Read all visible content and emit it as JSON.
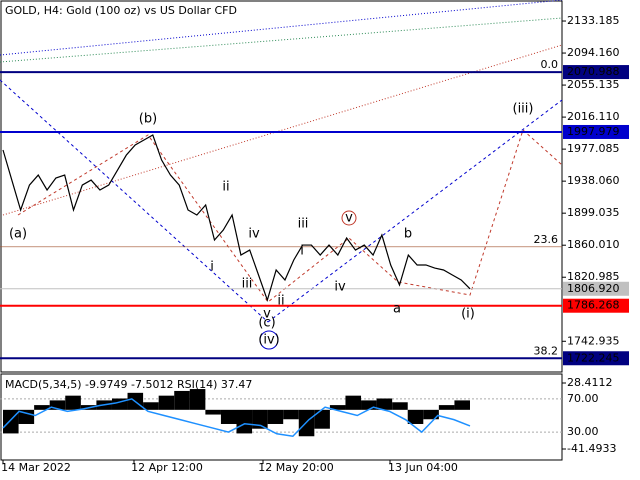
{
  "chart_data": {
    "type": "line",
    "title": "GOLD, H4:  Gold (100 oz) vs US Dollar CFD",
    "values": [
      1976.0,
      1939.4,
      1902.9,
      1933.3,
      1945.5,
      1927.3,
      1941.9,
      1945.5,
      1902.9,
      1933.3,
      1939.4,
      1927.3,
      1933.3,
      1951.6,
      1969.9,
      1982.1,
      1988.2,
      1994.3,
      1963.8,
      1945.5,
      1933.3,
      1902.9,
      1896.8,
      1909.0,
      1866.3,
      1878.5,
      1896.8,
      1848.0,
      1854.1,
      1823.7,
      1793.2,
      1829.8,
      1817.6,
      1842.0,
      1860.2,
      1860.2,
      1848.0,
      1860.2,
      1848.0,
      1868.8,
      1854.1,
      1860.2,
      1848.0,
      1872.4,
      1835.9,
      1811.5,
      1848.0,
      1835.9,
      1835.9,
      1832.2,
      1829.8,
      1823.7,
      1817.6,
      1806.92
    ],
    "color": "#000000",
    "ylim": [
      1705.5,
      2158.8
    ],
    "yticks": [
      2133.185,
      {
        "value": 2094.16,
        "label": "2094.160"
      },
      2055.135,
      {
        "value": 2016.11,
        "label": "2016.110"
      },
      1977.085,
      {
        "value": 1938.06,
        "label": "1938.060"
      },
      1899.035,
      {
        "value": 1860.01,
        "label": "1860.010"
      },
      1820.985,
      1742.935
    ],
    "levels": [
      {
        "value": 2070.988,
        "label": "2070.988",
        "color": "#000080"
      },
      {
        "value": 1997.979,
        "label": "1997.979",
        "color": "#0000cd"
      },
      {
        "value": 1786.268,
        "label": "1786.268",
        "color": "#ff0000"
      },
      {
        "value": 1722.245,
        "label": "1722.245",
        "color": "#000080"
      },
      {
        "value": 1806.92,
        "label": "1806.920",
        "color": "#c0c0c0"
      }
    ],
    "fib_levels": [
      {
        "label": "0.0",
        "value": 2070.988
      },
      {
        "label": "23.6",
        "value": 1858
      },
      {
        "label": "38.2",
        "value": 1722.245
      }
    ],
    "waves": [
      {
        "text": "(a)",
        "color": "#c0392b"
      },
      {
        "text": "(b)",
        "color": "#c0392b"
      },
      {
        "text": "ii",
        "color": "#555555"
      },
      {
        "text": "i",
        "color": "#555555"
      },
      {
        "text": "iv",
        "color": "#555555"
      },
      {
        "text": "iii",
        "color": "#555555"
      },
      {
        "text": "v",
        "color": "#555555"
      },
      {
        "text": "ii",
        "color": "#555555"
      },
      {
        "text": "(c)",
        "color": "#c0392b"
      },
      {
        "text": "(iv)",
        "color": "#0000cd"
      },
      {
        "text": "iii",
        "color": "#555555"
      },
      {
        "text": "i",
        "color": "#555555"
      },
      {
        "text": "v",
        "color": "#c0392b"
      },
      {
        "text": "iv",
        "color": "#555555"
      },
      {
        "text": "b",
        "color": "#555555"
      },
      {
        "text": "a",
        "color": "#555555"
      },
      {
        "text": "(iii)",
        "color": "#c0392b"
      },
      {
        "text": "(i)",
        "color": "#c0392b"
      }
    ],
    "x_labels": [
      "14 Mar 2022",
      "12 Apr 12:00",
      "12 May 20:00",
      "13 Jun 04:00"
    ],
    "indicator": {
      "title": "MACD(5,34,5) -9.9749 -7.5012 RSI(14) 37.47",
      "macd_ylim": [
        -41.4933,
        28.4112
      ],
      "macd_yticks": [
        28.4112,
        -41.4933
      ],
      "rsi_ylim": [
        0,
        100
      ],
      "rsi_yticks": [
        {
          "value": 70,
          "label": "70.00"
        },
        {
          "value": 30,
          "label": "30.00"
        }
      ],
      "histogram": [
        -25,
        -15,
        5,
        10,
        15,
        5,
        10,
        12,
        18,
        8,
        15,
        20,
        22,
        -5,
        -15,
        -25,
        -20,
        -15,
        -10,
        -28,
        -20,
        5,
        15,
        10,
        12,
        8,
        -15,
        -10,
        5,
        10
      ],
      "rsi": [
        35,
        55,
        50,
        60,
        55,
        58,
        62,
        65,
        70,
        55,
        50,
        45,
        40,
        35,
        30,
        40,
        38,
        28,
        25,
        45,
        60,
        55,
        50,
        60,
        55,
        45,
        30,
        50,
        45,
        37.47
      ],
      "hist_color": "#000000",
      "rsi_color": "#1e90ff"
    }
  }
}
